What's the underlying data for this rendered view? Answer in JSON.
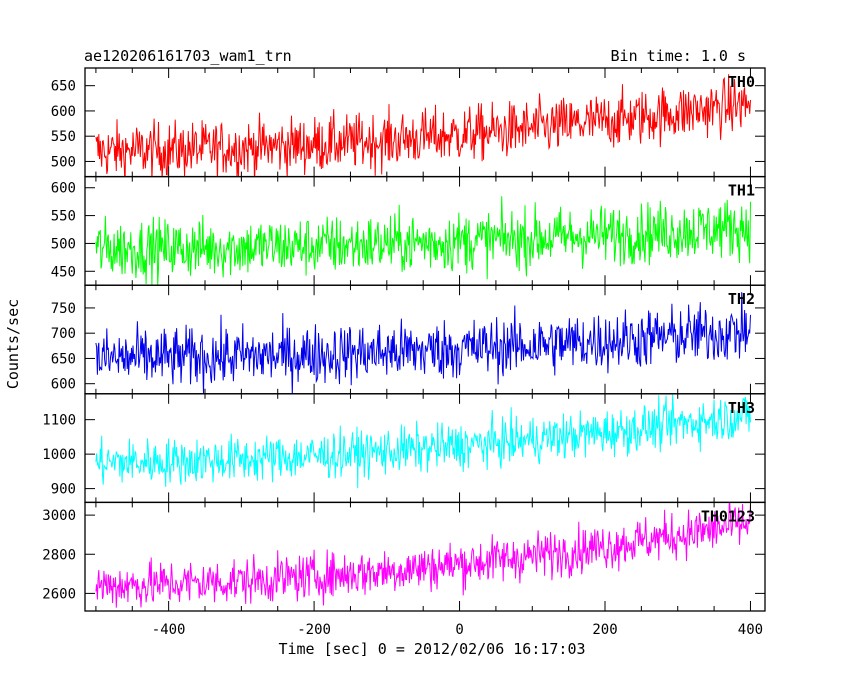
{
  "header": {
    "title": "ae120206161703_wam1_trn",
    "bin_time": "Bin time: 1.0 s"
  },
  "axes": {
    "xlabel": "Time [sec] 0 = 2012/02/06 16:17:03",
    "ylabel": "Counts/sec"
  },
  "chart_data": {
    "type": "line",
    "title": "ae120206161703_wam1_trn",
    "xlabel": "Time [sec] 0 = 2012/02/06 16:17:03",
    "ylabel": "Counts/sec",
    "xlim": [
      -515,
      420
    ],
    "x_ticks": [
      -400,
      -200,
      0,
      200,
      400
    ],
    "x_range": [
      -500,
      400
    ],
    "bin_time_s": 1.0,
    "grid": false,
    "panels": [
      {
        "name": "TH0",
        "color": "#ff0000",
        "ylim": [
          470,
          685
        ],
        "yticks": [
          500,
          550,
          600,
          650
        ],
        "start_mean": 520,
        "end_mean": 615,
        "noise": 28
      },
      {
        "name": "TH1",
        "color": "#00ff00",
        "ylim": [
          425,
          620
        ],
        "yticks": [
          450,
          500,
          550,
          600
        ],
        "start_mean": 490,
        "end_mean": 530,
        "noise": 27
      },
      {
        "name": "TH2",
        "color": "#0000ee",
        "ylim": [
          580,
          795
        ],
        "yticks": [
          600,
          650,
          700,
          750
        ],
        "start_mean": 650,
        "end_mean": 705,
        "noise": 30
      },
      {
        "name": "TH3",
        "color": "#00ffff",
        "ylim": [
          860,
          1175
        ],
        "yticks": [
          900,
          1000,
          1100
        ],
        "start_mean": 975,
        "end_mean": 1115,
        "noise": 34
      },
      {
        "name": "TH0123",
        "color": "#ff00ff",
        "ylim": [
          2510,
          3065
        ],
        "yticks": [
          2600,
          2800,
          3000
        ],
        "start_mean": 2640,
        "end_mean": 2960,
        "noise": 60
      }
    ]
  }
}
